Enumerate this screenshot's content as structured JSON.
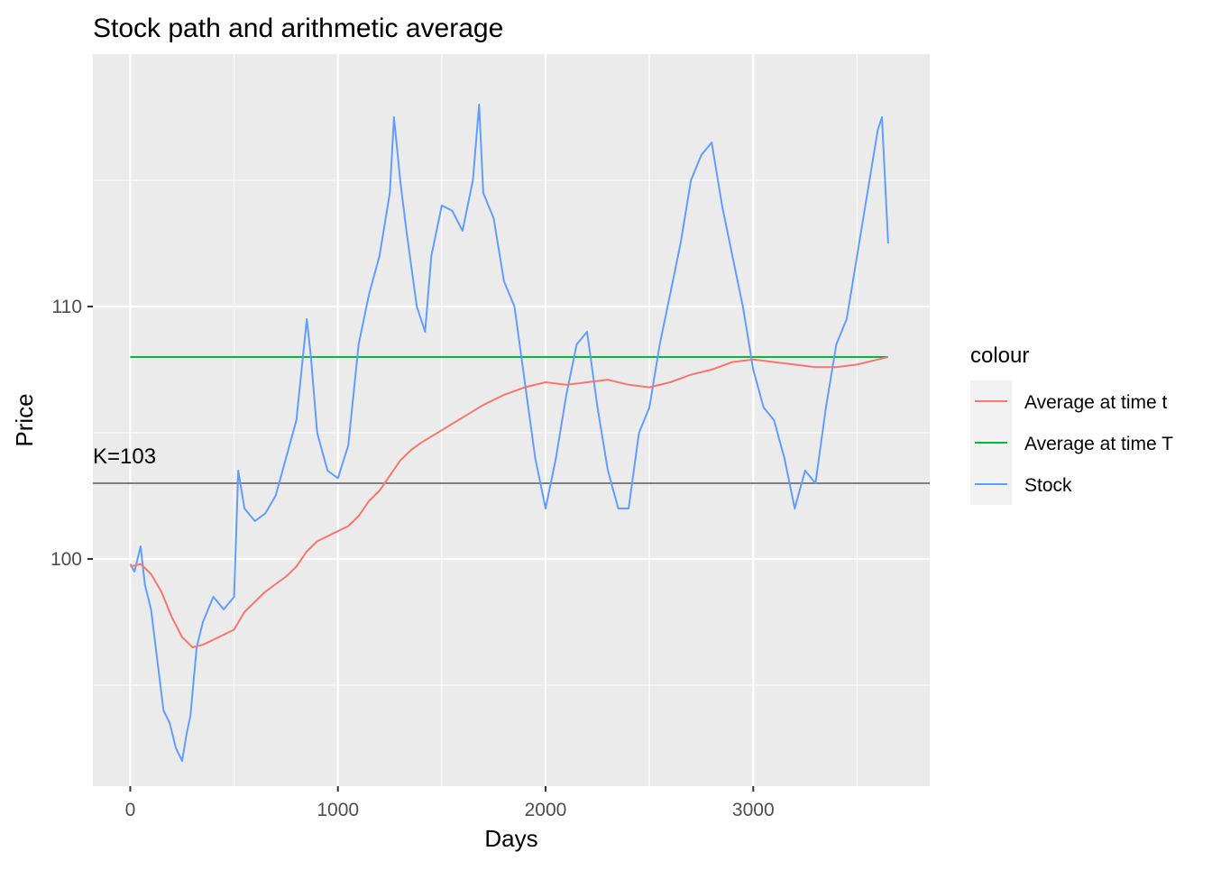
{
  "chart_data": {
    "type": "line",
    "title": "Stock path and arithmetic average",
    "xlabel": "Days",
    "ylabel": "Price",
    "xlim": [
      -180,
      3850
    ],
    "ylim": [
      91.0,
      120.0
    ],
    "x_ticks": [
      0,
      1000,
      2000,
      3000
    ],
    "x_tick_labels": [
      "0",
      "1000",
      "2000",
      "3000"
    ],
    "y_ticks": [
      100,
      110
    ],
    "y_tick_labels": [
      "100",
      "110"
    ],
    "grid": true,
    "legend": {
      "title": "colour",
      "position": "right",
      "entries": [
        "Average at time t",
        "Average at time T",
        "Stock"
      ]
    },
    "colors": {
      "average_t": "#F8766D",
      "average_T": "#00BA38",
      "stock": "#619CFF",
      "strike": "#808080",
      "panel": "#EBEBEB",
      "grid": "#FFFFFF"
    },
    "annotation": {
      "text": "K=103",
      "value": 103.0,
      "x": 0
    },
    "series": [
      {
        "name": "Stock",
        "x": [
          0,
          20,
          50,
          70,
          100,
          130,
          160,
          190,
          220,
          250,
          270,
          290,
          320,
          350,
          400,
          450,
          500,
          520,
          550,
          600,
          650,
          700,
          750,
          800,
          850,
          870,
          900,
          950,
          1000,
          1050,
          1100,
          1150,
          1200,
          1250,
          1270,
          1300,
          1330,
          1380,
          1420,
          1450,
          1500,
          1550,
          1600,
          1650,
          1680,
          1700,
          1750,
          1800,
          1850,
          1900,
          1950,
          2000,
          2050,
          2100,
          2150,
          2200,
          2250,
          2300,
          2350,
          2400,
          2450,
          2500,
          2550,
          2600,
          2650,
          2700,
          2750,
          2800,
          2850,
          2900,
          2950,
          3000,
          3050,
          3100,
          3150,
          3200,
          3250,
          3300,
          3350,
          3400,
          3450,
          3500,
          3550,
          3600,
          3620,
          3650
        ],
        "y": [
          99.8,
          99.5,
          100.5,
          99.0,
          98.0,
          96.0,
          94.0,
          93.5,
          92.5,
          92.0,
          93.0,
          93.8,
          96.5,
          97.5,
          98.5,
          98.0,
          98.5,
          103.5,
          102.0,
          101.5,
          101.8,
          102.5,
          104.0,
          105.5,
          109.5,
          108.0,
          105.0,
          103.5,
          103.2,
          104.5,
          108.5,
          110.5,
          112.0,
          114.5,
          117.5,
          115.0,
          113.0,
          110.0,
          109.0,
          112.0,
          114.0,
          113.8,
          113.0,
          115.0,
          118.0,
          114.5,
          113.5,
          111.0,
          110.0,
          107.0,
          104.0,
          102.0,
          104.0,
          106.5,
          108.5,
          109.0,
          106.0,
          103.5,
          102.0,
          102.0,
          105.0,
          106.0,
          108.5,
          110.5,
          112.5,
          115.0,
          116.0,
          116.5,
          114.0,
          112.0,
          110.0,
          107.5,
          106.0,
          105.5,
          104.0,
          102.0,
          103.5,
          103.0,
          106.0,
          108.5,
          109.5,
          112.0,
          114.5,
          117.0,
          117.5,
          112.5
        ]
      },
      {
        "name": "Average at time t",
        "x": [
          0,
          50,
          100,
          150,
          200,
          250,
          300,
          350,
          400,
          450,
          500,
          550,
          600,
          650,
          700,
          750,
          800,
          850,
          900,
          950,
          1000,
          1050,
          1100,
          1150,
          1200,
          1250,
          1300,
          1350,
          1400,
          1500,
          1600,
          1700,
          1800,
          1900,
          2000,
          2100,
          2200,
          2300,
          2400,
          2500,
          2600,
          2700,
          2800,
          2900,
          3000,
          3100,
          3200,
          3300,
          3400,
          3500,
          3600,
          3650
        ],
        "y": [
          99.7,
          99.8,
          99.4,
          98.7,
          97.7,
          96.9,
          96.5,
          96.6,
          96.8,
          97.0,
          97.2,
          97.9,
          98.3,
          98.7,
          99.0,
          99.3,
          99.7,
          100.3,
          100.7,
          100.9,
          101.1,
          101.3,
          101.7,
          102.3,
          102.7,
          103.3,
          103.9,
          104.3,
          104.6,
          105.1,
          105.6,
          106.1,
          106.5,
          106.8,
          107.0,
          106.9,
          107.0,
          107.1,
          106.9,
          106.8,
          107.0,
          107.3,
          107.5,
          107.8,
          107.9,
          107.8,
          107.7,
          107.6,
          107.6,
          107.7,
          107.9,
          108.0
        ]
      },
      {
        "name": "Average at time T",
        "x": [
          0,
          3650
        ],
        "y": [
          108.0,
          108.0
        ]
      }
    ]
  }
}
